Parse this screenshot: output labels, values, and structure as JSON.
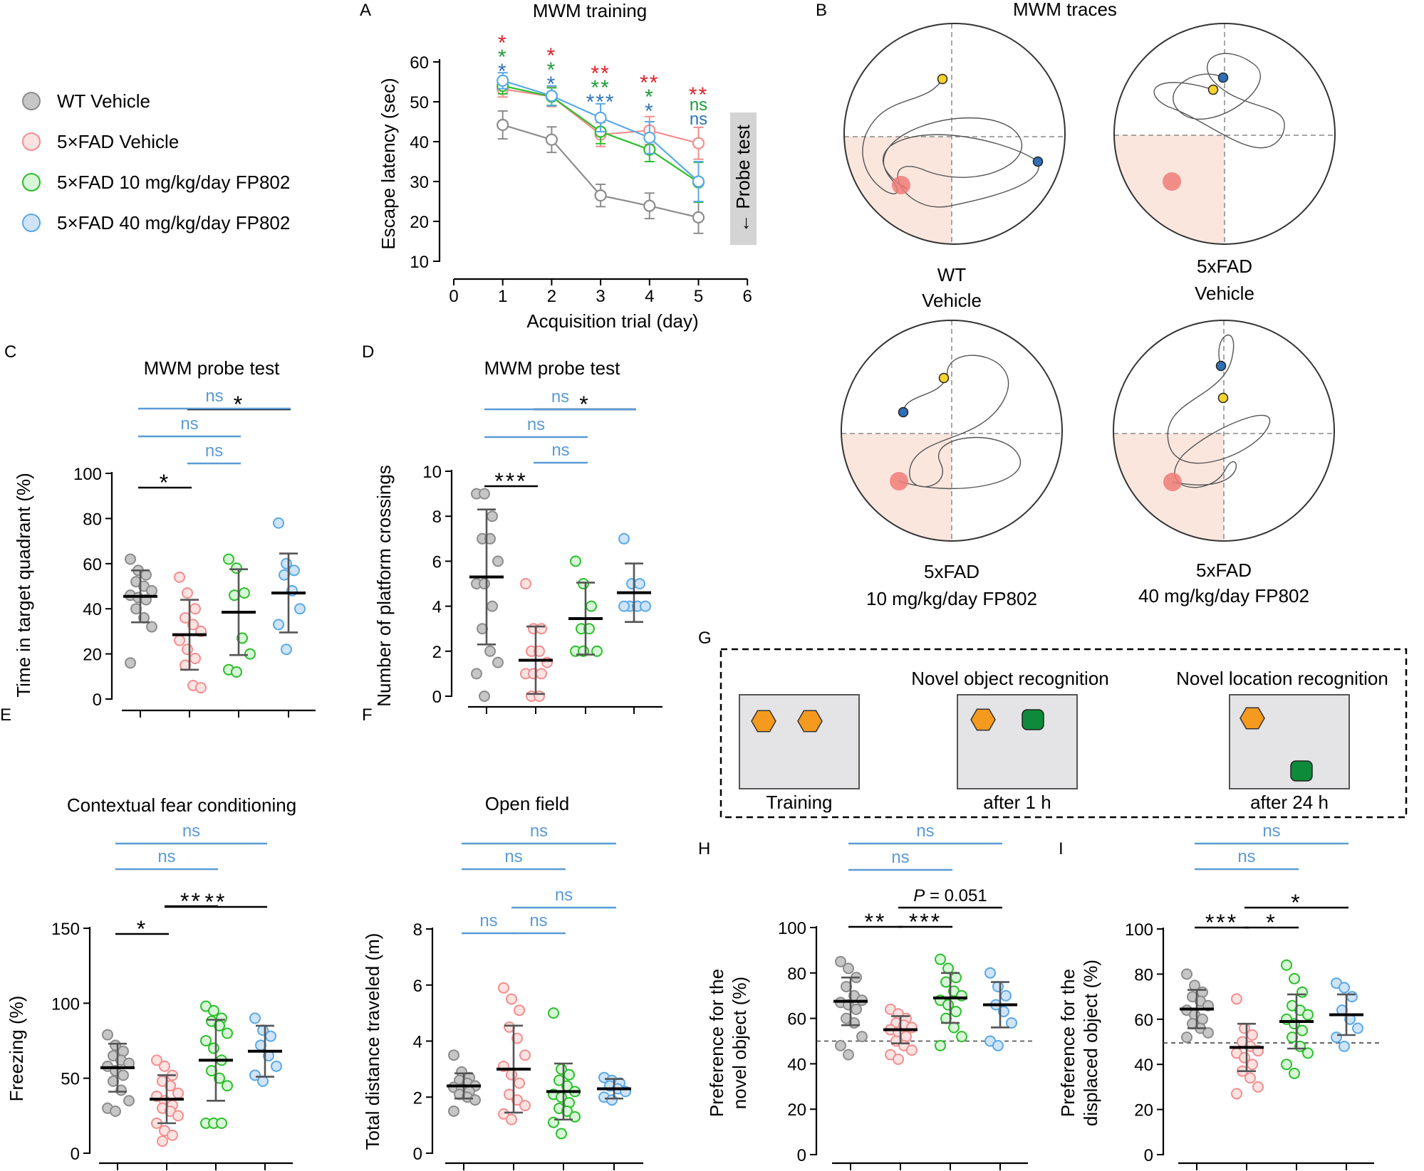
{
  "colors": {
    "wt": "#8c8c8c",
    "veh": "#f28e8e",
    "fp10": "#2bbf2b",
    "fp40": "#5aa9e8",
    "sigRed": "#e0202a",
    "sigGreen": "#1f9a3b",
    "sigBlue": "#2d73b8",
    "sigLight": "#5b9bd5",
    "yellow": "#f6d32d",
    "darkBlue": "#2f6fb5",
    "orange": "#f39a1f",
    "darkGreen": "#0d8a3a"
  },
  "legend": [
    {
      "key": "wt",
      "label": "WT Vehicle"
    },
    {
      "key": "veh",
      "label": "5×FAD Vehicle"
    },
    {
      "key": "fp10",
      "label": "5×FAD 10 mg/kg/day FP802"
    },
    {
      "key": "fp40",
      "label": "5×FAD 40 mg/kg/day FP802"
    }
  ],
  "panels": {
    "A": {
      "letter": "A",
      "title": "MWM training",
      "ylabel": "Escape latency (sec)",
      "xlabel": "Acquisition trial (day)",
      "probe_label": "← Probe test"
    },
    "B": {
      "letter": "B",
      "title": "MWM traces",
      "captions": [
        [
          "WT",
          "Vehicle"
        ],
        [
          "5xFAD",
          "Vehicle"
        ],
        [
          "5xFAD",
          "10 mg/kg/day FP802"
        ],
        [
          "5xFAD",
          "40 mg/kg/day FP802"
        ]
      ]
    },
    "C": {
      "letter": "C",
      "title": "MWM probe test",
      "ylabel": "Time in target quadrant (%)"
    },
    "D": {
      "letter": "D",
      "title": "MWM probe test",
      "ylabel": "Number of platform crossings"
    },
    "E": {
      "letter": "E",
      "title": "Contextual fear conditioning",
      "ylabel": "Freezing (%)"
    },
    "F": {
      "letter": "F",
      "title": "Open field",
      "ylabel": "Total distance traveled (m)"
    },
    "G": {
      "letter": "G",
      "headers": [
        "Novel object recognition",
        "Novel location recognition"
      ],
      "labels": [
        "Training",
        "after 1 h",
        "after 24 h"
      ]
    },
    "H": {
      "letter": "H",
      "ylabel1": "Preference for the",
      "ylabel2": "novel object (%)",
      "p_prefix": "P",
      "p_value": " = 0.051"
    },
    "I": {
      "letter": "I",
      "ylabel1": "Preference for the",
      "ylabel2": "displaced object (%)"
    }
  },
  "chart_data": [
    {
      "id": "A",
      "type": "line",
      "title": "MWM training",
      "xlabel": "Acquisition trial (day)",
      "ylabel": "Escape latency (sec)",
      "xlim": [
        0,
        6
      ],
      "ylim": [
        10,
        60
      ],
      "xticks": [
        "0",
        "1",
        "2",
        "3",
        "4",
        "5",
        "6"
      ],
      "yticks": [
        "10",
        "20",
        "30",
        "40",
        "50",
        "60"
      ],
      "x": [
        1,
        2,
        3,
        4,
        5
      ],
      "series": [
        {
          "name": "WT Vehicle",
          "key": "wt",
          "values": [
            44.2,
            40.5,
            26.5,
            23.9,
            21.0
          ],
          "err": [
            3.5,
            3.2,
            2.8,
            3.2,
            4.0
          ]
        },
        {
          "name": "5×FAD Vehicle",
          "key": "veh",
          "values": [
            53.2,
            51.3,
            41.8,
            42.8,
            39.6
          ],
          "err": [
            2.0,
            2.5,
            3.0,
            3.5,
            4.0
          ]
        },
        {
          "name": "5×FAD 10 mg/kg/day FP802",
          "key": "fp10",
          "values": [
            54.0,
            51.3,
            42.5,
            38.0,
            29.8
          ],
          "err": [
            2.0,
            2.2,
            3.0,
            3.0,
            5.0
          ]
        },
        {
          "name": "5×FAD 40 mg/kg/day FP802",
          "key": "fp40",
          "values": [
            55.3,
            51.5,
            46.0,
            41.0,
            30.0
          ],
          "err": [
            2.0,
            2.5,
            3.5,
            4.0,
            5.0
          ]
        }
      ],
      "significance": [
        {
          "day": 1,
          "marks": [
            {
              "text": "*",
              "color": "sigRed"
            },
            {
              "text": "*",
              "color": "sigGreen"
            },
            {
              "text": "*",
              "color": "sigBlue"
            }
          ]
        },
        {
          "day": 2,
          "marks": [
            {
              "text": "*",
              "color": "sigRed"
            },
            {
              "text": "*",
              "color": "sigGreen"
            },
            {
              "text": "*",
              "color": "sigBlue"
            }
          ]
        },
        {
          "day": 3,
          "marks": [
            {
              "text": "**",
              "color": "sigRed"
            },
            {
              "text": "**",
              "color": "sigGreen"
            },
            {
              "text": "***",
              "color": "sigBlue"
            }
          ]
        },
        {
          "day": 4,
          "marks": [
            {
              "text": "**",
              "color": "sigRed"
            },
            {
              "text": "*",
              "color": "sigGreen"
            },
            {
              "text": "*",
              "color": "sigBlue"
            }
          ]
        },
        {
          "day": 5,
          "marks": [
            {
              "text": "**",
              "color": "sigRed"
            },
            {
              "text": "ns",
              "color": "sigGreen"
            },
            {
              "text": "ns",
              "color": "sigBlue"
            }
          ]
        }
      ]
    },
    {
      "id": "C",
      "type": "scatter",
      "title": "MWM probe test",
      "ylabel": "Time in target quadrant (%)",
      "ylim": [
        0,
        100
      ],
      "yticks": [
        "0",
        "20",
        "40",
        "60",
        "80",
        "100"
      ],
      "groups": [
        {
          "key": "wt",
          "mean": 45.5,
          "sd": 11.5,
          "points": [
            62,
            57,
            55,
            52,
            50,
            48,
            46,
            45,
            44,
            40,
            36,
            32,
            16
          ]
        },
        {
          "key": "veh",
          "mean": 28.5,
          "sd": 15.5,
          "points": [
            54,
            47,
            40,
            36,
            33,
            30,
            26,
            22,
            18,
            15,
            6,
            5
          ]
        },
        {
          "key": "fp10",
          "mean": 38.5,
          "sd": 19,
          "points": [
            62,
            58,
            47,
            46,
            27,
            20,
            13,
            12
          ]
        },
        {
          "key": "fp40",
          "mean": 47,
          "sd": 17.5,
          "points": [
            78,
            60,
            57,
            55,
            48,
            40,
            33,
            22
          ]
        }
      ],
      "comparisons": [
        {
          "from": 0,
          "to": 1,
          "label": "*",
          "kind": "sig"
        },
        {
          "from": 1,
          "to": 2,
          "label": "ns",
          "kind": "ns"
        },
        {
          "from": 1,
          "to": 3,
          "label": "*",
          "kind": "sig"
        },
        {
          "from": 0,
          "to": 2,
          "label": "ns",
          "kind": "ns"
        },
        {
          "from": 0,
          "to": 3,
          "label": "ns",
          "kind": "ns"
        }
      ]
    },
    {
      "id": "D",
      "type": "scatter",
      "title": "MWM probe test",
      "ylabel": "Number of platform crossings",
      "ylim": [
        0,
        10
      ],
      "yticks": [
        "0",
        "2",
        "4",
        "6",
        "8",
        "10"
      ],
      "groups": [
        {
          "key": "wt",
          "mean": 5.3,
          "sd": 3.0,
          "points": [
            9,
            9,
            8,
            7,
            7,
            6,
            5,
            5,
            4,
            3,
            2,
            1.5,
            1,
            0
          ]
        },
        {
          "key": "veh",
          "mean": 1.6,
          "sd": 1.5,
          "points": [
            5,
            3,
            3,
            2,
            2,
            1.5,
            1,
            1,
            1,
            0,
            0
          ]
        },
        {
          "key": "fp10",
          "mean": 3.45,
          "sd": 1.6,
          "points": [
            6,
            5,
            4,
            3,
            3,
            2,
            2,
            2
          ]
        },
        {
          "key": "fp40",
          "mean": 4.6,
          "sd": 1.3,
          "points": [
            7,
            5,
            5,
            4,
            4,
            4,
            4
          ]
        }
      ],
      "comparisons": [
        {
          "from": 0,
          "to": 1,
          "label": "***",
          "kind": "sig"
        },
        {
          "from": 1,
          "to": 2,
          "label": "ns",
          "kind": "ns"
        },
        {
          "from": 1,
          "to": 3,
          "label": "*",
          "kind": "sig"
        },
        {
          "from": 0,
          "to": 2,
          "label": "ns",
          "kind": "ns"
        },
        {
          "from": 0,
          "to": 3,
          "label": "ns",
          "kind": "ns"
        }
      ]
    },
    {
      "id": "E",
      "type": "scatter",
      "title": "Contextual fear conditioning",
      "ylabel": "Freezing (%)",
      "ylim": [
        0,
        150
      ],
      "yticks": [
        "0",
        "50",
        "100",
        "150"
      ],
      "groups": [
        {
          "key": "wt",
          "mean": 57,
          "sd": 16,
          "points": [
            79,
            72,
            68,
            65,
            62,
            60,
            58,
            55,
            52,
            48,
            42,
            35,
            30,
            28
          ]
        },
        {
          "key": "veh",
          "mean": 36,
          "sd": 16,
          "points": [
            62,
            58,
            52,
            48,
            45,
            40,
            38,
            35,
            32,
            30,
            28,
            25,
            20,
            15,
            12,
            8
          ]
        },
        {
          "key": "fp10",
          "mean": 62,
          "sd": 27,
          "points": [
            98,
            95,
            90,
            88,
            85,
            80,
            75,
            70,
            62,
            55,
            50,
            45,
            20,
            20,
            20
          ]
        },
        {
          "key": "fp40",
          "mean": 68,
          "sd": 17,
          "points": [
            90,
            82,
            78,
            72,
            65,
            58,
            52,
            48
          ]
        }
      ],
      "comparisons": [
        {
          "from": 0,
          "to": 1,
          "label": "*",
          "kind": "sig"
        },
        {
          "from": 1,
          "to": 2,
          "label": "**",
          "kind": "sig"
        },
        {
          "from": 1,
          "to": 3,
          "label": "**",
          "kind": "sig"
        },
        {
          "from": 0,
          "to": 2,
          "label": "ns",
          "kind": "ns"
        },
        {
          "from": 0,
          "to": 3,
          "label": "ns",
          "kind": "ns"
        }
      ]
    },
    {
      "id": "F",
      "type": "scatter",
      "title": "Open field",
      "ylabel": "Total distance traveled (m)",
      "ylim": [
        0,
        8
      ],
      "yticks": [
        "0",
        "2",
        "4",
        "6",
        "8"
      ],
      "groups": [
        {
          "key": "wt",
          "mean": 2.4,
          "sd": 0.45,
          "points": [
            3.5,
            2.9,
            2.7,
            2.6,
            2.5,
            2.4,
            2.35,
            2.3,
            2.2,
            2.1,
            2.0,
            1.9,
            1.5
          ]
        },
        {
          "key": "veh",
          "mean": 3.0,
          "sd": 1.55,
          "points": [
            5.9,
            5.5,
            5.1,
            4.5,
            4.1,
            3.5,
            3.1,
            2.8,
            2.5,
            2.1,
            1.9,
            1.7,
            1.4,
            1.2
          ]
        },
        {
          "key": "fp10",
          "mean": 2.2,
          "sd": 1.0,
          "points": [
            5.0,
            3.0,
            2.8,
            2.6,
            2.4,
            2.2,
            2.1,
            2.0,
            1.8,
            1.6,
            1.5,
            1.3,
            1.1,
            0.7
          ]
        },
        {
          "key": "fp40",
          "mean": 2.3,
          "sd": 0.35,
          "points": [
            2.7,
            2.6,
            2.5,
            2.4,
            2.3,
            2.2,
            2.0,
            1.9
          ]
        }
      ],
      "comparisons": [
        {
          "from": 0,
          "to": 1,
          "label": "ns",
          "kind": "ns"
        },
        {
          "from": 1,
          "to": 2,
          "label": "ns",
          "kind": "ns"
        },
        {
          "from": 1,
          "to": 3,
          "label": "ns",
          "kind": "ns"
        },
        {
          "from": 0,
          "to": 2,
          "label": "ns",
          "kind": "ns"
        },
        {
          "from": 0,
          "to": 3,
          "label": "ns",
          "kind": "ns"
        }
      ]
    },
    {
      "id": "H",
      "type": "scatter",
      "ylabel": "Preference for the novel object (%)",
      "ylim": [
        0,
        100
      ],
      "yticks": [
        "0",
        "20",
        "40",
        "60",
        "80",
        "100"
      ],
      "refline": 50,
      "groups": [
        {
          "key": "wt",
          "mean": 67.5,
          "sd": 10.5,
          "points": [
            85,
            82,
            78,
            74,
            70,
            68,
            67,
            66,
            64,
            60,
            58,
            52,
            48,
            44
          ]
        },
        {
          "key": "veh",
          "mean": 55,
          "sd": 6,
          "points": [
            64,
            62,
            60,
            58,
            57,
            56,
            55,
            54,
            52,
            50,
            48,
            46,
            44,
            42
          ]
        },
        {
          "key": "fp10",
          "mean": 69,
          "sd": 11,
          "points": [
            86,
            82,
            78,
            76,
            72,
            70,
            68,
            66,
            63,
            60,
            56,
            52,
            48
          ]
        },
        {
          "key": "fp40",
          "mean": 66,
          "sd": 10,
          "points": [
            80,
            74,
            70,
            66,
            63,
            58,
            50,
            48
          ]
        }
      ],
      "comparisons": [
        {
          "from": 0,
          "to": 1,
          "label": "**",
          "kind": "sig"
        },
        {
          "from": 1,
          "to": 2,
          "label": "***",
          "kind": "sig"
        },
        {
          "from": 1,
          "to": 3,
          "label": "P = 0.051",
          "kind": "p"
        },
        {
          "from": 0,
          "to": 2,
          "label": "ns",
          "kind": "ns"
        },
        {
          "from": 0,
          "to": 3,
          "label": "ns",
          "kind": "ns"
        }
      ]
    },
    {
      "id": "I",
      "type": "scatter",
      "ylabel": "Preference for the displaced object (%)",
      "ylim": [
        0,
        100
      ],
      "yticks": [
        "0",
        "20",
        "40",
        "60",
        "80",
        "100"
      ],
      "refline": 49.5,
      "groups": [
        {
          "key": "wt",
          "mean": 64.5,
          "sd": 8.5,
          "points": [
            80,
            75,
            72,
            70,
            68,
            66,
            64,
            62,
            60,
            58,
            56,
            54,
            52
          ]
        },
        {
          "key": "veh",
          "mean": 47.5,
          "sd": 10.5,
          "points": [
            69,
            56,
            53,
            50,
            48,
            46,
            45,
            43,
            40,
            37,
            34,
            30,
            27
          ]
        },
        {
          "key": "fp10",
          "mean": 59,
          "sd": 12,
          "points": [
            84,
            78,
            72,
            66,
            64,
            62,
            60,
            58,
            55,
            52,
            48,
            45,
            40,
            36
          ]
        },
        {
          "key": "fp40",
          "mean": 62,
          "sd": 9,
          "points": [
            76,
            74,
            70,
            64,
            60,
            56,
            52,
            48
          ]
        }
      ],
      "comparisons": [
        {
          "from": 0,
          "to": 1,
          "label": "***",
          "kind": "sig"
        },
        {
          "from": 1,
          "to": 2,
          "label": "*",
          "kind": "sig"
        },
        {
          "from": 1,
          "to": 3,
          "label": "*",
          "kind": "sig"
        },
        {
          "from": 0,
          "to": 2,
          "label": "ns",
          "kind": "ns"
        },
        {
          "from": 0,
          "to": 3,
          "label": "ns",
          "kind": "ns"
        }
      ]
    }
  ]
}
